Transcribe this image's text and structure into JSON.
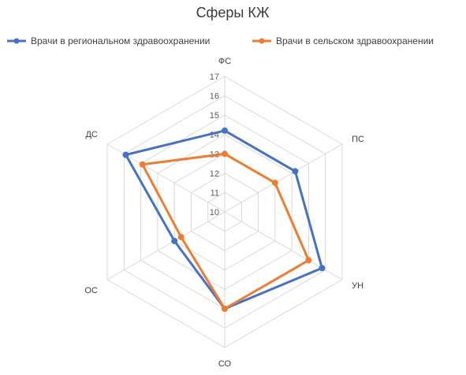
{
  "chart_data": {
    "type": "radar",
    "title": "Сферы КЖ",
    "axes": [
      "ФС",
      "ПС",
      "УН",
      "СО",
      "ОС",
      "ДС"
    ],
    "r_ticks": [
      10,
      11,
      12,
      13,
      14,
      15,
      16,
      17
    ],
    "rlim": [
      10,
      17
    ],
    "grid": true,
    "legend_position": "top",
    "series": [
      {
        "name": "Врачи в региональном здравоохранении",
        "color": "#4472C4",
        "values": [
          14.2,
          14.2,
          15.8,
          15.0,
          13.0,
          15.9
        ]
      },
      {
        "name": "Врачи в сельском здравоохранении",
        "color": "#ED7D31",
        "values": [
          13.0,
          13.0,
          15.0,
          15.0,
          12.6,
          14.9
        ]
      }
    ]
  }
}
